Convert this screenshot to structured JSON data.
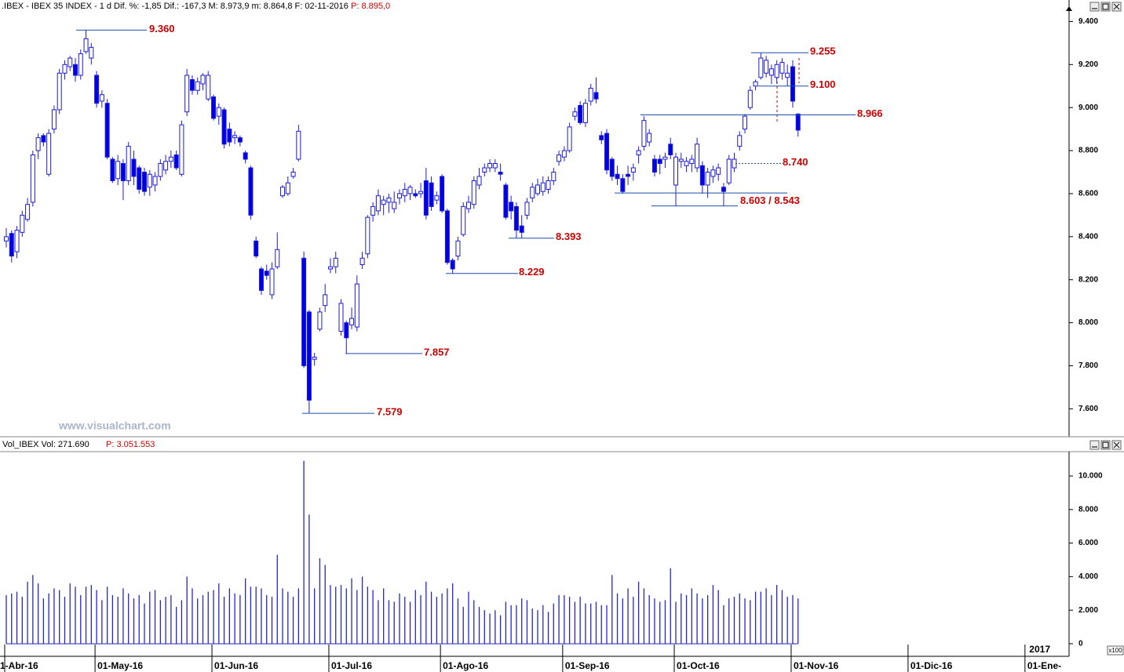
{
  "chart_data": [
    {
      "type": "candlestick",
      "header": ".IBEX - IBEX 35 INDEX - 1 d Dif. %: -1,85 Dif.: -167,3 M: 8.973,9 m: 8.864,8 F: 02-11-2016",
      "header_price": "P: 8.895,0",
      "watermark": "www.visualchart.com",
      "year_label": "2017",
      "up_color": "#ffffff",
      "down_color": "#0000e6",
      "line_color": "#1c1cd8",
      "annotation_color": "#cc0000",
      "annotation_line_color": "#1f4fa8",
      "categories": [
        "1-Abr-16",
        null,
        null,
        null,
        null,
        null,
        null,
        null,
        null,
        null,
        null,
        null,
        null,
        null,
        null,
        null,
        null,
        "01-May-16",
        null,
        null,
        null,
        null,
        null,
        null,
        null,
        null,
        null,
        null,
        null,
        null,
        null,
        null,
        null,
        null,
        null,
        null,
        null,
        null,
        null,
        "01-Jun-16",
        null,
        null,
        null,
        null,
        null,
        null,
        null,
        null,
        null,
        null,
        null,
        null,
        null,
        null,
        null,
        null,
        null,
        null,
        null,
        null,
        null,
        "01-Jul-16",
        null,
        null,
        null,
        null,
        null,
        null,
        null,
        null,
        null,
        null,
        null,
        null,
        null,
        null,
        null,
        null,
        null,
        null,
        null,
        null,
        "01-Ago-16",
        null,
        null,
        null,
        null,
        null,
        null,
        null,
        null,
        null,
        null,
        null,
        null,
        null,
        null,
        null,
        null,
        null,
        null,
        null,
        null,
        null,
        null,
        "01-Sep-16",
        null,
        null,
        null,
        null,
        null,
        null,
        null,
        null,
        null,
        null,
        null,
        null,
        null,
        null,
        null,
        null,
        null,
        null,
        null,
        null,
        "01-Oct-16",
        null,
        null,
        null,
        null,
        null,
        null,
        null,
        null,
        null,
        null,
        null,
        null,
        null,
        null,
        null,
        null,
        null,
        null,
        null,
        null,
        null,
        "01-Nov-16",
        null,
        null,
        null,
        null,
        null,
        null,
        null,
        null,
        null,
        null,
        null,
        null,
        null,
        null,
        null,
        null,
        null,
        null,
        null,
        null,
        null,
        "01-Dic-16",
        null,
        null,
        null,
        null,
        null,
        null,
        null,
        null,
        null,
        null,
        null,
        null,
        null,
        null,
        null,
        null,
        null,
        null,
        null,
        null,
        null,
        "01-Ene-"
      ],
      "open": [
        8380,
        8415,
        8330,
        8420,
        8480,
        8560,
        8800,
        8870,
        8690,
        8900,
        8990,
        9160,
        9190,
        9200,
        9150,
        9260,
        9230,
        9150,
        9030,
        9020,
        8760,
        8670,
        8740,
        8660,
        8760,
        8720,
        8700,
        8630,
        8640,
        8680,
        8710,
        8750,
        8780,
        8690,
        8980,
        9130,
        9080,
        9110,
        9040,
        9050,
        8960,
        8990,
        8900,
        8860,
        8860,
        8790,
        8720,
        8380,
        8250,
        8240,
        8130,
        8260,
        8590,
        8600,
        8680,
        8760,
        8300,
        8050,
        7830,
        7970,
        8080,
        8250,
        8260,
        7960,
        8000,
        7990,
        7980,
        8270,
        8320,
        8500,
        8520,
        8550,
        8560,
        8530,
        8580,
        8590,
        8600,
        8600,
        8600,
        8660,
        8650,
        8570,
        8680,
        8520,
        8290,
        8310,
        8410,
        8530,
        8550,
        8640,
        8700,
        8720,
        8720,
        8700,
        8640,
        8560,
        8540,
        8450,
        8500,
        8580,
        8600,
        8610,
        8620,
        8660,
        8750,
        8770,
        8800,
        8960,
        9010,
        8930,
        9030,
        9070,
        8870,
        8880,
        8760,
        8690,
        8670,
        8690,
        8700,
        8780,
        8820,
        8840,
        8760,
        8760,
        8760,
        8830,
        8640,
        8750,
        8730,
        8740,
        8720,
        8730,
        8640,
        8680,
        8690,
        8630,
        8650,
        8720,
        8820,
        8900,
        9000,
        9100,
        9140,
        9160,
        9150,
        9140,
        9160,
        9140,
        9190,
        8970,
        null,
        null,
        null,
        null,
        null,
        null,
        null,
        null,
        null,
        null,
        null,
        null,
        null,
        null,
        null,
        null,
        null,
        null,
        null,
        null,
        null,
        null,
        null,
        null,
        null,
        null,
        null,
        null,
        null,
        null,
        null,
        null,
        null,
        null,
        null,
        null,
        null,
        null,
        null,
        null,
        null,
        null,
        null
      ],
      "high": [
        8440,
        8430,
        8450,
        8520,
        8580,
        8800,
        8880,
        8880,
        8900,
        9010,
        9180,
        9220,
        9240,
        9230,
        9270,
        9360,
        9300,
        9170,
        9080,
        9040,
        8770,
        8780,
        8760,
        8840,
        8800,
        8730,
        8720,
        8710,
        8700,
        8760,
        8780,
        8800,
        8800,
        8940,
        9180,
        9150,
        9140,
        9160,
        9170,
        9060,
        9020,
        9000,
        8930,
        8890,
        8870,
        8800,
        8730,
        8400,
        8260,
        8270,
        8280,
        8420,
        8640,
        8680,
        8720,
        8920,
        8330,
        8060,
        7860,
        8070,
        8180,
        8300,
        8330,
        8110,
        8010,
        8070,
        8220,
        8330,
        8500,
        8560,
        8620,
        8590,
        8600,
        8610,
        8620,
        8650,
        8640,
        8620,
        8650,
        8720,
        8680,
        8610,
        8690,
        8530,
        8300,
        8400,
        8560,
        8590,
        8680,
        8720,
        8740,
        8760,
        8760,
        8740,
        8650,
        8590,
        8560,
        8500,
        8580,
        8650,
        8670,
        8680,
        8680,
        8720,
        8800,
        8820,
        8930,
        9000,
        9030,
        9040,
        9110,
        9140,
        8890,
        8900,
        8770,
        8730,
        8690,
        8730,
        8740,
        8820,
        8960,
        8900,
        8780,
        8780,
        8790,
        8860,
        8790,
        8790,
        8770,
        8780,
        8860,
        8750,
        8720,
        8730,
        8740,
        8650,
        8780,
        8790,
        8890,
        8970,
        9100,
        9130,
        9255,
        9240,
        9200,
        9220,
        9230,
        9200,
        9220,
        8974,
        null,
        null,
        null,
        null,
        null,
        null,
        null,
        null,
        null,
        null,
        null,
        null,
        null,
        null,
        null,
        null,
        null,
        null,
        null,
        null,
        null,
        null,
        null,
        null,
        null,
        null,
        null,
        null,
        null,
        null,
        null,
        null,
        null,
        null,
        null,
        null,
        null,
        null,
        null,
        null,
        null,
        null,
        null
      ],
      "low": [
        8350,
        8280,
        8300,
        8400,
        8470,
        8540,
        8760,
        8820,
        8680,
        8880,
        8970,
        9130,
        9170,
        9120,
        9130,
        9250,
        9200,
        9000,
        9000,
        8760,
        8650,
        8640,
        8570,
        8640,
        8640,
        8600,
        8590,
        8590,
        8610,
        8660,
        8690,
        8720,
        8710,
        8680,
        8960,
        9060,
        9060,
        9080,
        9030,
        8940,
        8920,
        8810,
        8820,
        8830,
        8820,
        8740,
        8480,
        8300,
        8130,
        8200,
        8110,
        8250,
        8580,
        8590,
        8670,
        8750,
        7790,
        7579,
        7800,
        7960,
        8050,
        8230,
        8230,
        7940,
        7857,
        7970,
        7960,
        8250,
        8300,
        8470,
        8500,
        8500,
        8510,
        8510,
        8550,
        8560,
        8570,
        8580,
        8580,
        8480,
        8520,
        8550,
        8510,
        8270,
        8229,
        8290,
        8400,
        8510,
        8530,
        8620,
        8680,
        8700,
        8700,
        8660,
        8480,
        8480,
        8393,
        8393,
        8480,
        8560,
        8590,
        8590,
        8600,
        8640,
        8730,
        8750,
        8790,
        8940,
        8920,
        8910,
        9010,
        9020,
        8830,
        8690,
        8660,
        8640,
        8600,
        8640,
        8660,
        8740,
        8800,
        8820,
        8680,
        8690,
        8720,
        8760,
        8543,
        8720,
        8700,
        8700,
        8700,
        8600,
        8580,
        8650,
        8660,
        8543,
        8640,
        8700,
        8800,
        8880,
        8990,
        9080,
        9130,
        9140,
        9110,
        9110,
        9130,
        9100,
        9000,
        8865,
        null,
        null,
        null,
        null,
        null,
        null,
        null,
        null,
        null,
        null,
        null,
        null,
        null,
        null,
        null,
        null,
        null,
        null,
        null,
        null,
        null,
        null,
        null,
        null,
        null,
        null,
        null,
        null,
        null,
        null,
        null,
        null,
        null,
        null,
        null,
        null,
        null,
        null,
        null,
        null,
        null,
        null,
        null
      ],
      "close": [
        8400,
        8310,
        8430,
        8500,
        8550,
        8780,
        8860,
        8840,
        8880,
        8990,
        9160,
        9200,
        9230,
        9150,
        9250,
        9320,
        9280,
        9020,
        9060,
        8770,
        8660,
        8750,
        8660,
        8820,
        8680,
        8620,
        8610,
        8690,
        8680,
        8740,
        8750,
        8770,
        8720,
        8920,
        9150,
        9080,
        9120,
        9150,
        9150,
        8950,
        9000,
        8830,
        8840,
        8870,
        8840,
        8760,
        8500,
        8310,
        8150,
        8220,
        8250,
        8340,
        8630,
        8650,
        8700,
        8890,
        7800,
        7640,
        7840,
        8050,
        8130,
        8260,
        8300,
        8090,
        7930,
        8020,
        8180,
        8300,
        8490,
        8540,
        8590,
        8570,
        8580,
        8560,
        8600,
        8620,
        8630,
        8590,
        8610,
        8500,
        8540,
        8590,
        8520,
        8280,
        8250,
        8380,
        8540,
        8560,
        8660,
        8680,
        8720,
        8740,
        8740,
        8690,
        8490,
        8520,
        8430,
        8420,
        8560,
        8630,
        8640,
        8650,
        8660,
        8700,
        8780,
        8800,
        8910,
        8980,
        8930,
        9020,
        9090,
        9040,
        8850,
        8710,
        8680,
        8670,
        8610,
        8680,
        8720,
        8800,
        8940,
        8880,
        8700,
        8740,
        8770,
        8780,
        8770,
        8760,
        8750,
        8760,
        8830,
        8640,
        8700,
        8710,
        8720,
        8610,
        8760,
        8760,
        8870,
        8960,
        9080,
        9120,
        9230,
        9220,
        9180,
        9200,
        9210,
        9160,
        9030,
        8895,
        null,
        null,
        null,
        null,
        null,
        null,
        null,
        null,
        null,
        null,
        null,
        null,
        null,
        null,
        null,
        null,
        null,
        null,
        null,
        null,
        null,
        null,
        null,
        null,
        null,
        null,
        null,
        null,
        null,
        null,
        null,
        null,
        null,
        null,
        null,
        null,
        null,
        null,
        null,
        null,
        null,
        null,
        null
      ],
      "ylim": [
        7470,
        9500
      ],
      "yticks": [
        {
          "value": 7600,
          "label": "7.600"
        },
        {
          "value": 7800,
          "label": "7.800"
        },
        {
          "value": 8000,
          "label": "8.000"
        },
        {
          "value": 8200,
          "label": "8.200"
        },
        {
          "value": 8400,
          "label": "8.400"
        },
        {
          "value": 8600,
          "label": "8.600"
        },
        {
          "value": 8800,
          "label": "8.800"
        },
        {
          "value": 9000,
          "label": "9.000"
        },
        {
          "value": 9200,
          "label": "9.200"
        },
        {
          "value": 9400,
          "label": "9.400"
        }
      ],
      "annotations": [
        {
          "value": 9360,
          "label": "9.360"
        },
        {
          "value": 9255,
          "label": "9.255"
        },
        {
          "value": 9100,
          "label": "9.100"
        },
        {
          "value": 8966,
          "label": "8.966"
        },
        {
          "value": 8740,
          "label": "8.740"
        },
        {
          "values": [
            8603,
            8543
          ],
          "label": "8.603 / 8.543"
        },
        {
          "value": 8393,
          "label": "8.393"
        },
        {
          "value": 8229,
          "label": "8.229"
        },
        {
          "value": 7857,
          "label": "7.857"
        },
        {
          "value": 7579,
          "label": "7.579"
        }
      ]
    },
    {
      "type": "bar",
      "header": "Vol_IBEX Vol: 271.690",
      "header_price": "P: 3.051.553",
      "unit_label": "x100",
      "color": "#2626c8",
      "values": [
        2900,
        3000,
        3100,
        2800,
        3700,
        4100,
        3600,
        2700,
        3000,
        3300,
        3200,
        2800,
        3600,
        3400,
        2900,
        3400,
        3500,
        3200,
        2600,
        3400,
        2900,
        2800,
        3300,
        3000,
        2700,
        2900,
        2400,
        3100,
        3200,
        2600,
        2800,
        2900,
        2200,
        2600,
        4000,
        3300,
        2700,
        2900,
        3100,
        3200,
        3600,
        2800,
        3300,
        3000,
        2900,
        3900,
        3400,
        3400,
        3300,
        2900,
        2800,
        5300,
        3300,
        3100,
        2800,
        3300,
        10900,
        7700,
        3300,
        5100,
        4700,
        3500,
        3400,
        3500,
        3300,
        3900,
        3200,
        4000,
        3400,
        3200,
        2600,
        3300,
        2600,
        2500,
        3000,
        2800,
        2500,
        3200,
        2900,
        3700,
        3100,
        2800,
        3000,
        3300,
        3600,
        2700,
        2200,
        3100,
        2600,
        2200,
        2000,
        1800,
        2000,
        1700,
        2500,
        2300,
        2300,
        2700,
        2600,
        2100,
        2000,
        2300,
        1900,
        2400,
        2900,
        2900,
        2800,
        2500,
        2800,
        2400,
        2400,
        2500,
        2300,
        2300,
        4100,
        3000,
        2700,
        3300,
        2800,
        3700,
        3300,
        2900,
        2700,
        2500,
        2600,
        4500,
        2500,
        3000,
        2900,
        3300,
        3000,
        2700,
        2900,
        3500,
        3200,
        2300,
        2700,
        2800,
        3000,
        2700,
        2600,
        3100,
        3100,
        3300,
        2900,
        3500,
        3200,
        2800,
        2900,
        2700,
        null,
        null,
        null,
        null,
        null,
        null,
        null,
        null,
        null,
        null,
        null,
        null,
        null,
        null,
        null,
        null,
        null,
        null,
        null,
        null,
        null,
        null,
        null,
        null,
        null,
        null,
        null,
        null,
        null,
        null,
        null,
        null,
        null,
        null,
        null,
        null,
        null,
        null,
        null,
        null,
        null,
        null,
        null
      ],
      "ylim": [
        -750,
        11450
      ],
      "yticks": [
        0,
        {
          "value": 2000,
          "label": "2.000"
        },
        {
          "value": 4000,
          "label": "4.000"
        },
        {
          "value": 6000,
          "label": "6.000"
        },
        {
          "value": 8000,
          "label": "8.000"
        },
        {
          "value": 10000,
          "label": "10.000"
        }
      ]
    }
  ]
}
